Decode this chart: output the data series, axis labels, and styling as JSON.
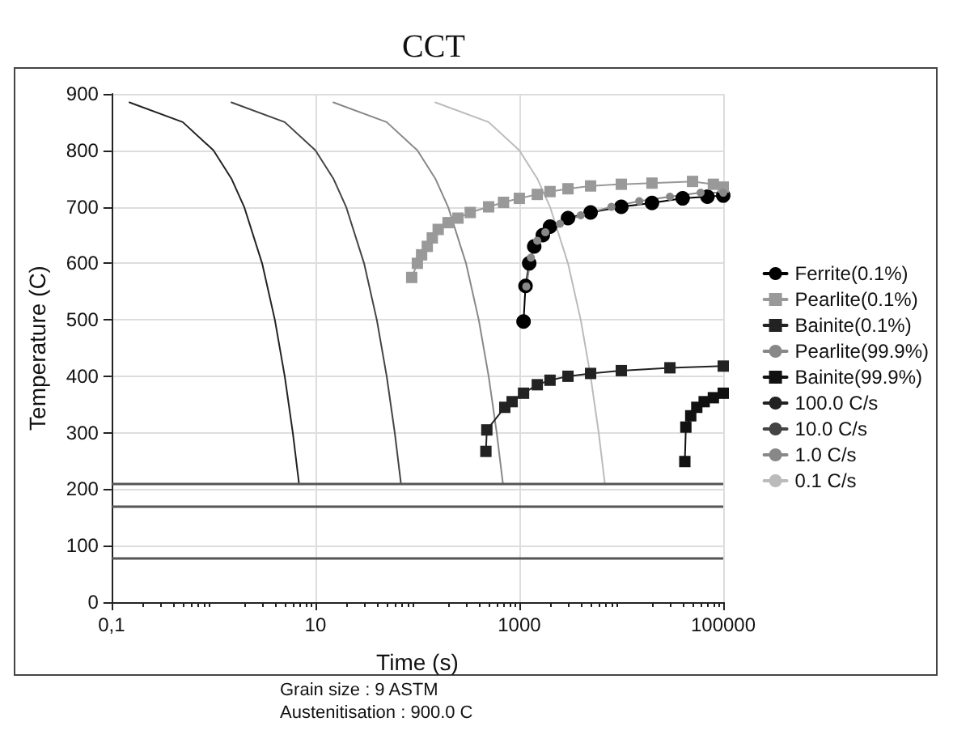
{
  "chart_data": {
    "type": "line",
    "title": "CCT",
    "xlabel": "Time (s)",
    "ylabel": "Temperature (C)",
    "log": "x",
    "grid": true,
    "legend": "right",
    "line_style": "solid",
    "xlim": [
      0.1,
      100000
    ],
    "xticks": [
      {
        "value": 0.1,
        "label": "0,1"
      },
      10,
      1000,
      100000
    ],
    "ylim": [
      0,
      900
    ],
    "yticks": [
      0,
      100,
      200,
      300,
      400,
      500,
      600,
      700,
      800,
      900
    ],
    "series": [
      {
        "name": "Ferrite(0.1%)",
        "color": "#000000",
        "marker": "circle",
        "x": [
          1100,
          1150,
          1250,
          1400,
          1700,
          2000,
          3000,
          5000,
          10000,
          20000,
          40000,
          70000,
          100000
        ],
        "values": [
          497,
          560,
          600,
          630,
          650,
          665,
          680,
          690,
          700,
          707,
          715,
          718,
          720
        ]
      },
      {
        "name": "Pearlite(0.1%)",
        "color": "#999999",
        "marker": "square",
        "x": [
          88,
          100,
          110,
          125,
          140,
          160,
          200,
          250,
          330,
          500,
          700,
          1000,
          1500,
          2000,
          3000,
          5000,
          10000,
          20000,
          50000,
          80000,
          100000
        ],
        "values": [
          575,
          600,
          615,
          630,
          645,
          660,
          672,
          680,
          690,
          700,
          708,
          715,
          722,
          727,
          732,
          737,
          740,
          742,
          745,
          740,
          735
        ]
      },
      {
        "name": "Bainite(0.1%)",
        "color": "#222222",
        "marker": "square",
        "x": [
          470,
          480,
          720,
          850,
          1100,
          1500,
          2000,
          3000,
          5000,
          10000,
          30000,
          100000
        ],
        "values": [
          267,
          305,
          345,
          355,
          370,
          385,
          393,
          400,
          405,
          410,
          415,
          418
        ]
      },
      {
        "name": "Pearlite(99.9%)",
        "color": "#888888",
        "marker": "circle",
        "x": [
          1170,
          1300,
          1500,
          1800,
          2500,
          4000,
          8000,
          15000,
          30000,
          60000,
          100000
        ],
        "values": [
          559,
          610,
          640,
          655,
          670,
          685,
          700,
          710,
          718,
          725,
          725
        ]
      },
      {
        "name": "Bainite(99.9%)",
        "color": "#111111",
        "marker": "square",
        "x": [
          42000,
          43000,
          48000,
          55000,
          65000,
          80000,
          100000
        ],
        "values": [
          249,
          310,
          330,
          345,
          355,
          362,
          370
        ]
      },
      {
        "name": "100.0 C/s",
        "color": "#222222",
        "marker": "none",
        "x": [
          0.15,
          0.5,
          1,
          1.5,
          2,
          3,
          4,
          5,
          6,
          6.9
        ],
        "values": [
          885,
          850,
          800,
          750,
          700,
          600,
          500,
          400,
          300,
          210
        ]
      },
      {
        "name": "10.0 C/s",
        "color": "#444444",
        "marker": "none",
        "x": [
          1.5,
          5,
          10,
          15,
          20,
          30,
          40,
          50,
          60,
          69
        ],
        "values": [
          885,
          850,
          800,
          750,
          700,
          600,
          500,
          400,
          300,
          210
        ]
      },
      {
        "name": "1.0 C/s",
        "color": "#888888",
        "marker": "none",
        "x": [
          15,
          50,
          100,
          150,
          200,
          300,
          400,
          500,
          600,
          690
        ],
        "values": [
          885,
          850,
          800,
          750,
          700,
          600,
          500,
          400,
          300,
          210
        ]
      },
      {
        "name": "0.1 C/s",
        "color": "#bbbbbb",
        "marker": "none",
        "x": [
          150,
          500,
          1000,
          1500,
          2000,
          3000,
          4000,
          5000,
          6000,
          6900
        ],
        "values": [
          885,
          850,
          800,
          750,
          700,
          600,
          500,
          400,
          300,
          210
        ]
      }
    ],
    "ref_lines": [
      {
        "axis": "y",
        "value": 210,
        "color": "#555555"
      },
      {
        "axis": "y",
        "value": 170,
        "color": "#555555"
      },
      {
        "axis": "y",
        "value": 77,
        "color": "#555555"
      }
    ],
    "annotations": [
      "Grain size : 9 ASTM",
      "Austenitisation : 900.0 C"
    ]
  }
}
